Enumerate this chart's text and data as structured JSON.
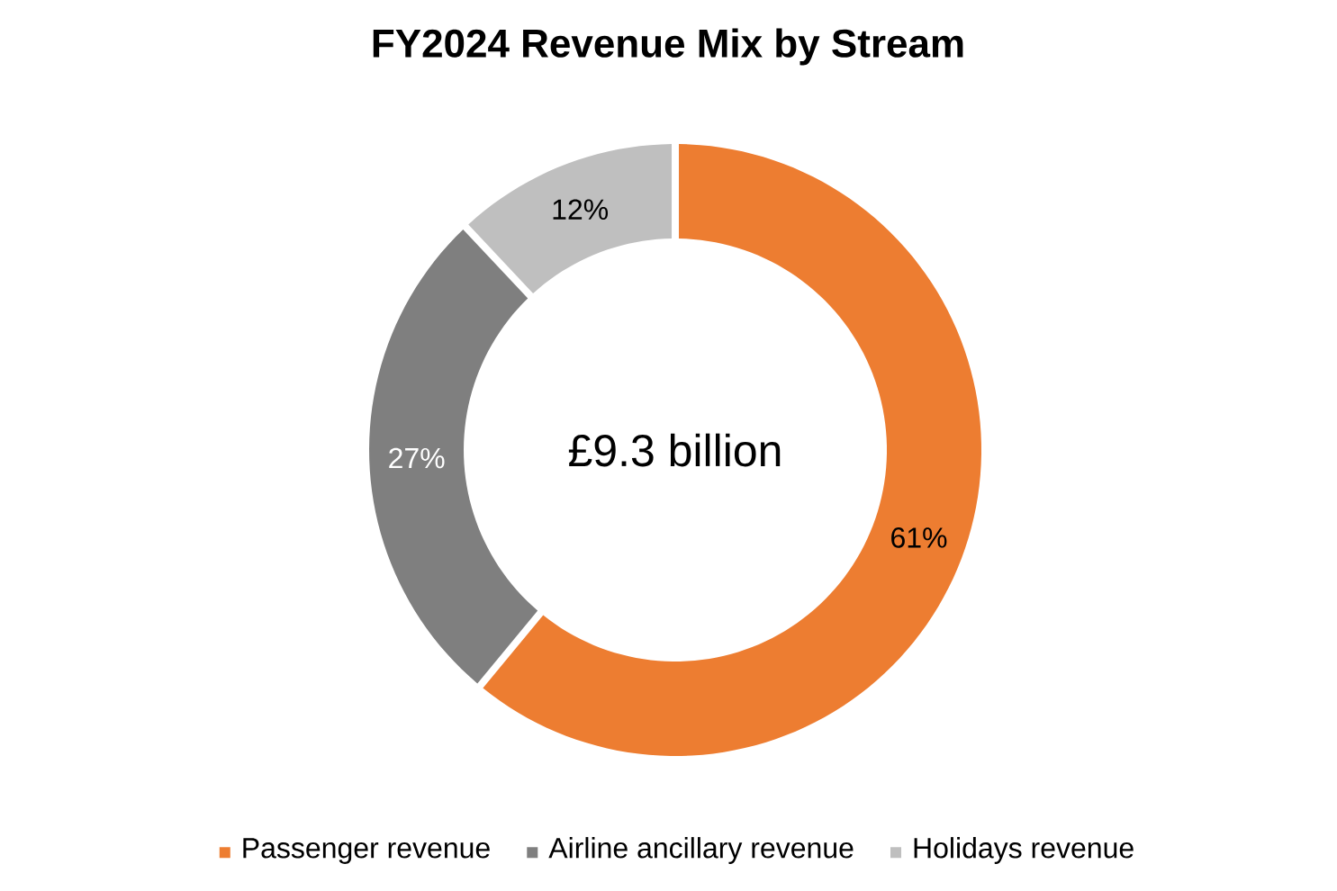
{
  "chart_data": {
    "type": "donut",
    "title": "FY2024 Revenue Mix by Stream",
    "categories": [
      "Passenger revenue",
      "Airline ancillary revenue",
      "Holidays revenue"
    ],
    "values": [
      61,
      27,
      12
    ],
    "colors": [
      "#ed7d31",
      "#7f7f7f",
      "#bfbfbf"
    ],
    "value_labels": [
      "61%",
      "27%",
      "12%"
    ],
    "annotations": [
      "£9.3 billion"
    ],
    "legend": "bottom"
  }
}
